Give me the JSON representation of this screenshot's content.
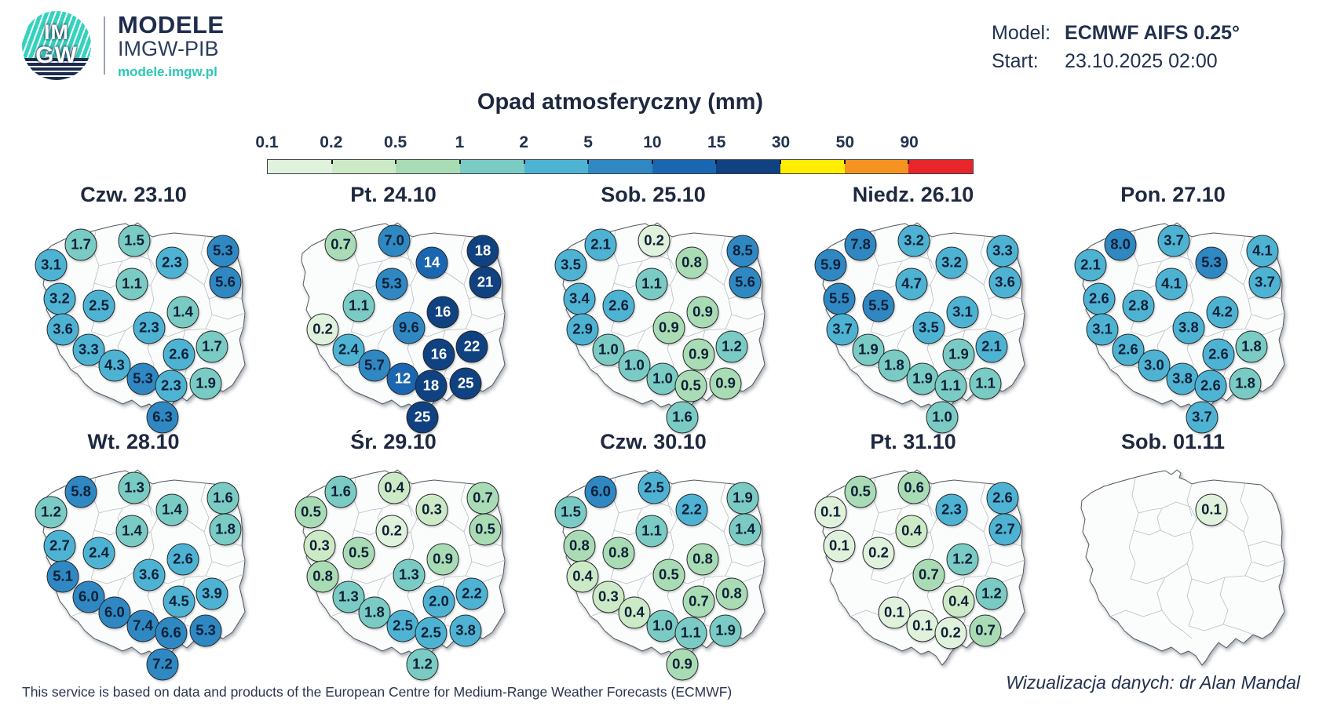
{
  "header": {
    "logo_im": "IM",
    "logo_gw": "GW",
    "brand_title": "MODELE",
    "brand_sub": "IMGW-PIB",
    "brand_url": "modele.imgw.pl",
    "model_label": "Model:",
    "model_value": "ECMWF AIFS 0.25°",
    "start_label": "Start:",
    "start_value": "23.10.2025 02:00"
  },
  "legend": {
    "title": "Opad atmosferyczny (mm)",
    "ticks": [
      "0.1",
      "0.2",
      "0.5",
      "1",
      "2",
      "5",
      "10",
      "15",
      "30",
      "50",
      "90"
    ],
    "segment_colors": [
      "#e0f1dc",
      "#cdeac6",
      "#a9dcb4",
      "#7acbc3",
      "#4eb3d3",
      "#2f88c2",
      "#1b66b0",
      "#104180",
      "#ffee00",
      "#f69320",
      "#e8252a"
    ]
  },
  "chart_data": {
    "type": "map",
    "title": "Opad atmosferyczny (mm)",
    "unit": "mm",
    "model": "ECMWF AIFS 0.25°",
    "start": "23.10.2025 02:00",
    "bin_labels": [
      "0.1-0.2",
      "0.2-0.5",
      "0.5-1",
      "1-2",
      "2-5",
      "5-10",
      "10-15",
      "15-30",
      "30-50",
      "50-90",
      "90+"
    ],
    "bin_colors": [
      "#e0f1dc",
      "#cdeac6",
      "#a9dcb4",
      "#7acbc3",
      "#4eb3d3",
      "#2f88c2",
      "#1b66b0",
      "#104180",
      "#ffee00",
      "#f69320",
      "#e8252a"
    ],
    "positions": [
      [
        21.1,
        14.2
      ],
      [
        45.4,
        12.3
      ],
      [
        62.5,
        23.1
      ],
      [
        85.7,
        17.3
      ],
      [
        7.5,
        24.2
      ],
      [
        44.3,
        33.5
      ],
      [
        86.8,
        32.7
      ],
      [
        11.4,
        40.8
      ],
      [
        29.3,
        44.2
      ],
      [
        67.5,
        47.3
      ],
      [
        12.9,
        55.8
      ],
      [
        52.1,
        55.0
      ],
      [
        24.6,
        65.8
      ],
      [
        65.7,
        68.1
      ],
      [
        80.7,
        64.2
      ],
      [
        36.4,
        73.5
      ],
      [
        49.3,
        80.0
      ],
      [
        62.1,
        83.5
      ],
      [
        77.9,
        82.3
      ],
      [
        58.2,
        98.8
      ]
    ],
    "days": [
      {
        "label": "Czw. 23.10",
        "values": [
          "1.7",
          "1.5",
          "2.3",
          "5.3",
          "3.1",
          "1.1",
          "5.6",
          "3.2",
          "2.5",
          "1.4",
          "3.6",
          "2.3",
          "3.3",
          "2.6",
          "1.7",
          "4.3",
          "5.3",
          "2.3",
          "1.9",
          "6.3"
        ]
      },
      {
        "label": "Pt. 24.10",
        "values": [
          "0.7",
          "7.0",
          "14",
          "18",
          null,
          "5.3",
          "21",
          null,
          "1.1",
          "16",
          "0.2",
          "9.6",
          "2.4",
          "16",
          "22",
          "5.7",
          "12",
          "18",
          "25",
          "25"
        ]
      },
      {
        "label": "Sob. 25.10",
        "values": [
          "2.1",
          "0.2",
          "0.8",
          "8.5",
          "3.5",
          "1.1",
          "5.6",
          "3.4",
          "2.6",
          "0.9",
          "2.9",
          "0.9",
          "1.0",
          "0.9",
          "1.2",
          "1.0",
          "1.0",
          "0.5",
          "0.9",
          "1.6"
        ]
      },
      {
        "label": "Niedz. 26.10",
        "values": [
          "7.8",
          "3.2",
          "3.2",
          "3.3",
          "5.9",
          "4.7",
          "3.6",
          "5.5",
          "5.5",
          "3.1",
          "3.7",
          "3.5",
          "1.9",
          "1.9",
          "2.1",
          "1.8",
          "1.9",
          "1.1",
          "1.1",
          "1.0"
        ]
      },
      {
        "label": "Pon. 27.10",
        "values": [
          "8.0",
          "3.7",
          "5.3",
          "4.1",
          "2.1",
          "4.1",
          "3.7",
          "2.6",
          "2.8",
          "4.2",
          "3.1",
          "3.8",
          "2.6",
          "2.6",
          "1.8",
          "3.0",
          "3.8",
          "2.6",
          "1.8",
          "3.7"
        ]
      },
      {
        "label": "Wt. 28.10",
        "values": [
          "5.8",
          "1.3",
          "1.4",
          "1.6",
          "1.2",
          "1.4",
          "1.8",
          "2.7",
          "2.4",
          "2.6",
          "5.1",
          "3.6",
          "6.0",
          "4.5",
          "3.9",
          "6.0",
          "7.4",
          "6.6",
          "5.3",
          "7.2"
        ]
      },
      {
        "label": "Śr. 29.10",
        "values": [
          "1.6",
          "0.4",
          "0.3",
          "0.7",
          "0.5",
          "0.2",
          "0.5",
          "0.3",
          "0.5",
          "0.9",
          "0.8",
          "1.3",
          "1.3",
          "2.0",
          "2.2",
          "1.8",
          "2.5",
          "2.5",
          "3.8",
          "1.2"
        ]
      },
      {
        "label": "Czw. 30.10",
        "values": [
          "6.0",
          "2.5",
          "2.2",
          "1.9",
          "1.5",
          "1.1",
          "1.4",
          "0.8",
          "0.8",
          "0.8",
          "0.4",
          "0.5",
          "0.3",
          "0.7",
          "0.8",
          "0.4",
          "1.0",
          "1.1",
          "1.9",
          "0.9"
        ]
      },
      {
        "label": "Pt. 31.10",
        "values": [
          "0.5",
          "0.6",
          "2.3",
          "2.6",
          "0.1",
          "0.4",
          "2.7",
          "0.1",
          "0.2",
          "1.2",
          null,
          "0.7",
          null,
          "0.4",
          "1.2",
          "0.1",
          "0.1",
          "0.2",
          "0.7",
          null
        ]
      },
      {
        "label": "Sob. 01.11",
        "values": [
          null,
          null,
          "0.1",
          null,
          null,
          null,
          null,
          null,
          null,
          null,
          null,
          null,
          null,
          null,
          null,
          null,
          null,
          null,
          null,
          null
        ]
      }
    ]
  },
  "footer": {
    "left": "This service is based on data and products of the European Centre for Medium-Range Weather Forecasts (ECMWF)",
    "right": "Wizualizacja danych: dr Alan Mandal"
  }
}
